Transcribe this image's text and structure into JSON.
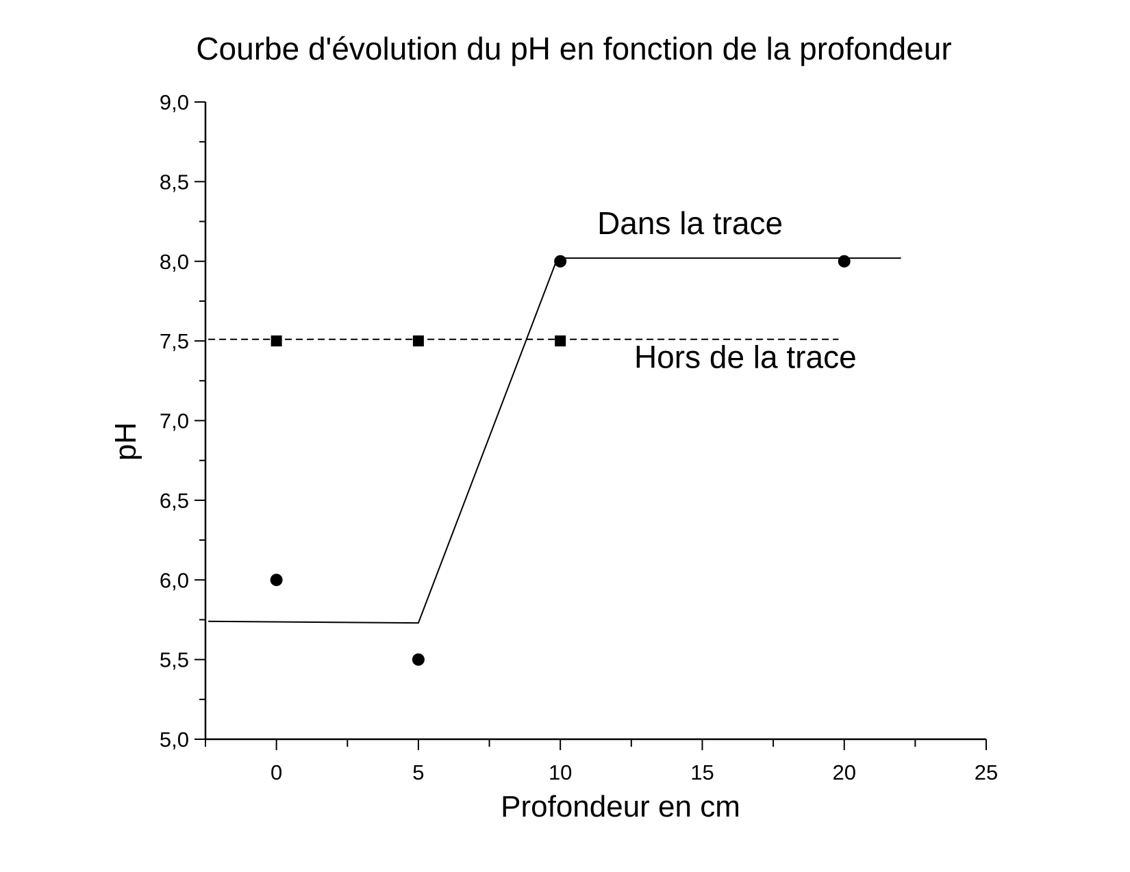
{
  "chart_data": {
    "type": "scatter",
    "title": "Courbe d'évolution du pH en fonction de la profondeur",
    "xlabel": "Profondeur en cm",
    "ylabel": "pH",
    "xlim": [
      -2.5,
      25
    ],
    "ylim": [
      5.0,
      9.0
    ],
    "x_ticks": [
      0,
      5,
      10,
      15,
      20,
      25
    ],
    "x_tick_labels": [
      "0",
      "5",
      "10",
      "15",
      "20",
      "25"
    ],
    "y_ticks": [
      5.0,
      5.5,
      6.0,
      6.5,
      7.0,
      7.5,
      8.0,
      8.5,
      9.0
    ],
    "y_tick_labels": [
      "5,0",
      "5,5",
      "6,0",
      "6,5",
      "7,0",
      "7,5",
      "8,0",
      "8,5",
      "9,0"
    ],
    "grid": false,
    "series": [
      {
        "name": "Dans la trace",
        "marker": "circle",
        "color": "#000000",
        "points": [
          {
            "x": 0,
            "y": 6.0
          },
          {
            "x": 5,
            "y": 5.5
          },
          {
            "x": 10,
            "y": 8.0
          },
          {
            "x": 20,
            "y": 8.0
          }
        ],
        "fit_line": {
          "style": "solid",
          "points": [
            {
              "x": -2.4,
              "y": 5.74
            },
            {
              "x": 5.0,
              "y": 5.73
            },
            {
              "x": 9.9,
              "y": 8.02
            },
            {
              "x": 22.0,
              "y": 8.02
            }
          ]
        }
      },
      {
        "name": "Hors de la trace",
        "marker": "square",
        "color": "#000000",
        "points": [
          {
            "x": 0,
            "y": 7.5
          },
          {
            "x": 5,
            "y": 7.5
          },
          {
            "x": 10,
            "y": 7.5
          }
        ],
        "fit_line": {
          "style": "dashed",
          "points": [
            {
              "x": -2.4,
              "y": 7.51
            },
            {
              "x": 19.8,
              "y": 7.51
            }
          ]
        }
      }
    ],
    "annotations": [
      {
        "text": "Dans la trace",
        "x": 11.3,
        "y": 8.17
      },
      {
        "text": "Hors de la trace",
        "x": 12.6,
        "y": 7.33
      }
    ]
  }
}
